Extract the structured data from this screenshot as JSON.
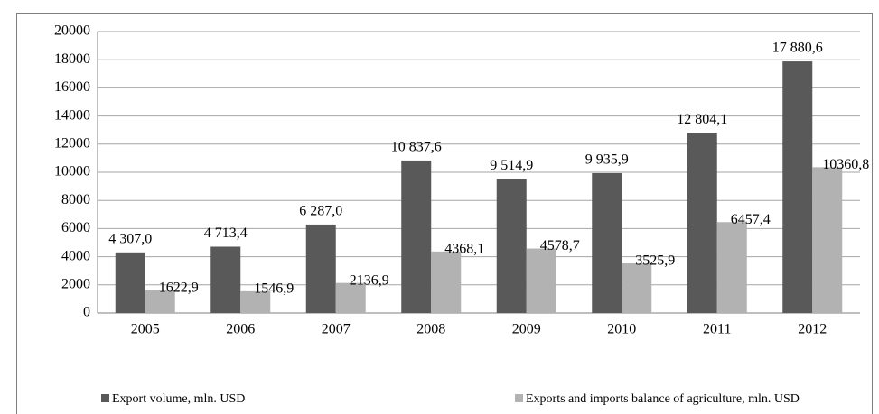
{
  "chart_data": {
    "type": "bar",
    "categories": [
      "2005",
      "2006",
      "2007",
      "2008",
      "2009",
      "2010",
      "2011",
      "2012"
    ],
    "series": [
      {
        "name": "Export volume, mln. USD",
        "color": "#595959",
        "values": [
          4307.0,
          4713.4,
          6287.0,
          10837.6,
          9514.9,
          9935.9,
          12804.1,
          17880.6
        ],
        "value_labels": [
          "4 307,0",
          "4 713,4",
          "6 287,0",
          "10 837,6",
          "9 514,9",
          "9 935,9",
          "12 804,1",
          "17 880,6"
        ]
      },
      {
        "name": "Exports and imports balance of agriculture, mln. USD",
        "color": "#b2b2b2",
        "values": [
          1622.9,
          1546.9,
          2136.9,
          4368.1,
          4578.7,
          3525.9,
          6457.4,
          10360.8
        ],
        "value_labels": [
          "1622,9",
          "1546,9",
          "2136,9",
          "4368,1",
          "4578,7",
          "3525,9",
          "6457,4",
          "10360,8"
        ]
      }
    ],
    "ylim": [
      0,
      20000
    ],
    "yticks": [
      0,
      2000,
      4000,
      6000,
      8000,
      10000,
      12000,
      14000,
      16000,
      18000,
      20000
    ],
    "grid": true,
    "legend": "bottom"
  }
}
